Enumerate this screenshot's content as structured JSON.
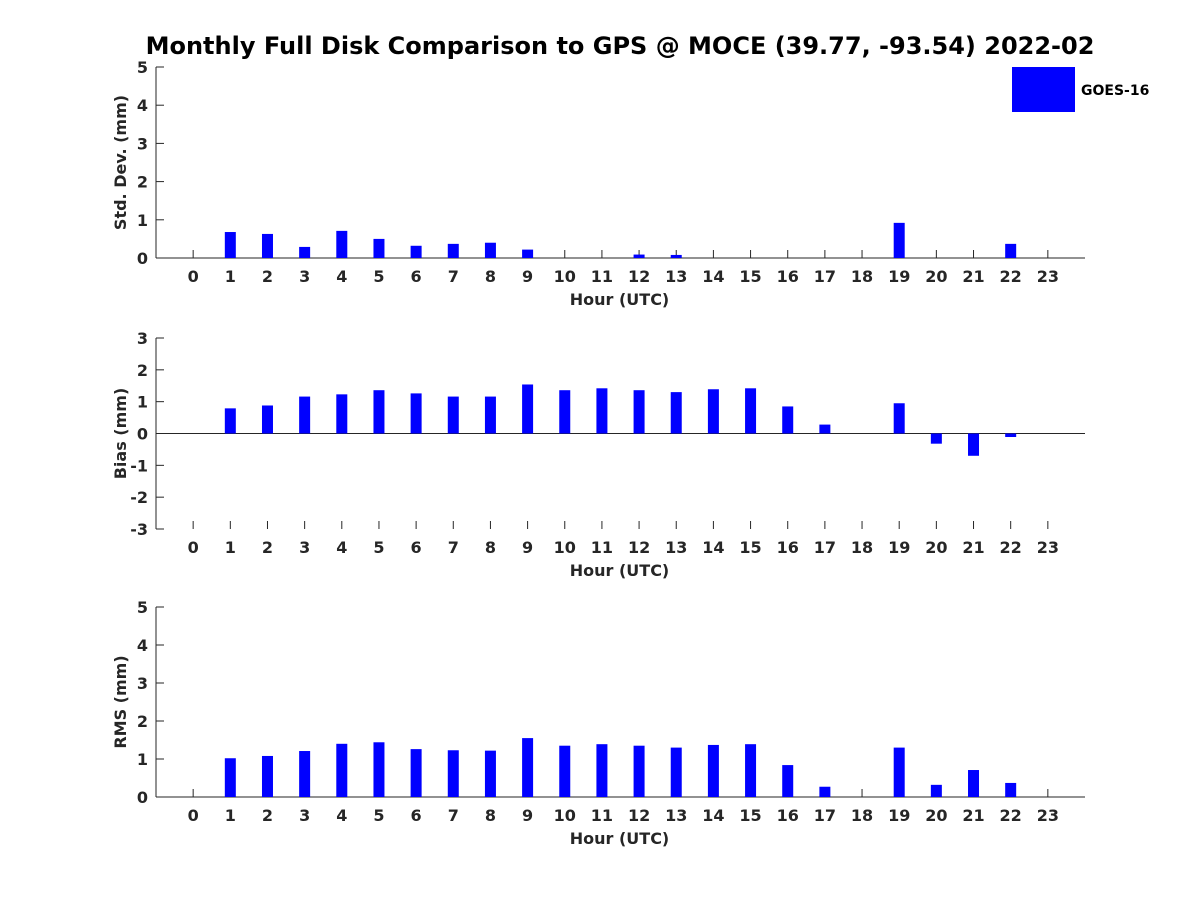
{
  "chart_data": {
    "title": "Monthly Full Disk Comparison to GPS @ MOCE (39.77, -93.54) 2022-02",
    "legend": {
      "label": "GOES-16",
      "placement": "top-right",
      "color": "#0000ff"
    },
    "bar_color": "#0000ff",
    "categories": [
      "0",
      "1",
      "2",
      "3",
      "4",
      "5",
      "6",
      "7",
      "8",
      "9",
      "10",
      "11",
      "12",
      "13",
      "14",
      "15",
      "16",
      "17",
      "18",
      "19",
      "20",
      "21",
      "22",
      "23"
    ],
    "panels": [
      {
        "type": "bar",
        "ylabel": "Std. Dev. (mm)",
        "xlabel": "Hour (UTC)",
        "ylim": [
          0,
          5
        ],
        "yticks": [
          "0",
          "1",
          "2",
          "3",
          "4",
          "5"
        ],
        "series": [
          {
            "name": "GOES-16",
            "values": [
              null,
              0.68,
              0.63,
              0.29,
              0.71,
              0.5,
              0.32,
              0.37,
              0.4,
              0.22,
              null,
              null,
              0.09,
              0.08,
              null,
              null,
              null,
              null,
              null,
              0.92,
              null,
              null,
              0.37,
              null
            ]
          }
        ]
      },
      {
        "type": "bar",
        "ylabel": "Bias (mm)",
        "xlabel": "Hour (UTC)",
        "ylim": [
          -3,
          3
        ],
        "yticks": [
          "-3",
          "-2",
          "-1",
          "0",
          "1",
          "2",
          "3"
        ],
        "series": [
          {
            "name": "GOES-16",
            "values": [
              null,
              0.79,
              0.88,
              1.16,
              1.23,
              1.36,
              1.26,
              1.16,
              1.16,
              1.54,
              1.36,
              1.42,
              1.36,
              1.3,
              1.39,
              1.42,
              0.85,
              0.28,
              null,
              0.95,
              -0.32,
              -0.7,
              -0.11,
              null
            ]
          }
        ]
      },
      {
        "type": "bar",
        "ylabel": "RMS (mm)",
        "xlabel": "Hour (UTC)",
        "ylim": [
          0,
          5
        ],
        "yticks": [
          "0",
          "1",
          "2",
          "3",
          "4",
          "5"
        ],
        "series": [
          {
            "name": "GOES-16",
            "values": [
              null,
              1.02,
              1.08,
              1.21,
              1.4,
              1.44,
              1.26,
              1.23,
              1.22,
              1.55,
              1.35,
              1.39,
              1.35,
              1.3,
              1.37,
              1.39,
              0.84,
              0.27,
              null,
              1.3,
              0.32,
              0.71,
              0.37,
              null
            ]
          }
        ]
      }
    ]
  }
}
